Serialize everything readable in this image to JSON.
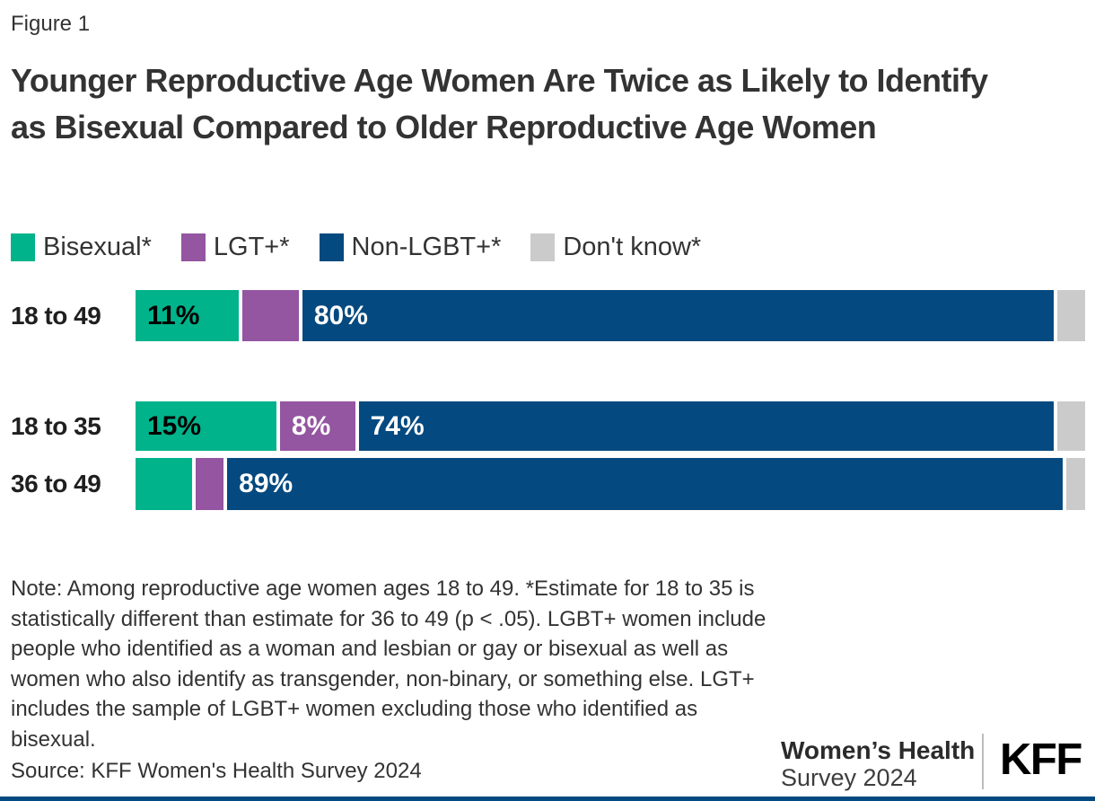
{
  "figure_label": "Figure 1",
  "title": "Younger Reproductive Age Women Are Twice as Likely to Identify as Bisexual Compared to Older Reproductive Age Women",
  "colors": {
    "bisexual_teal": "#00b38b",
    "lgt_purple": "#9455a1",
    "non_lgbt_navy": "#04497f",
    "dont_know_gray": "#cbcbcb",
    "bottom_accent_bar": "#04497f",
    "footer_divider": "#bdbdbd",
    "text": "#333333"
  },
  "chart_data": {
    "type": "bar",
    "orientation": "horizontal",
    "stacked": true,
    "unit": "percent",
    "xlim": [
      0,
      100
    ],
    "grid": false,
    "legend_position": "top",
    "categories": [
      "18 to 49",
      "18 to 35",
      "36 to 49"
    ],
    "series": [
      {
        "name": "Bisexual*",
        "color": "#00b38b",
        "label_color": "#000000",
        "values": [
          11,
          15,
          6
        ],
        "labels": [
          "11%",
          "15%",
          ""
        ]
      },
      {
        "name": "LGT+*",
        "color": "#9455a1",
        "label_color": "#ffffff",
        "values": [
          6,
          8,
          3
        ],
        "labels": [
          "",
          "8%",
          ""
        ]
      },
      {
        "name": "Non-LGBT+*",
        "color": "#04497f",
        "label_color": "#ffffff",
        "values": [
          80,
          74,
          89
        ],
        "labels": [
          "80%",
          "74%",
          "89%"
        ]
      },
      {
        "name": "Don't know*",
        "color": "#cbcbcb",
        "label_color": "#000000",
        "values": [
          3,
          3,
          2
        ],
        "labels": [
          "",
          "",
          ""
        ]
      }
    ]
  },
  "note": "Note: Among reproductive age women ages 18 to 49. *Estimate for 18 to 35 is statistically different than estimate for 36 to 49 (p < .05). LGBT+ women include people who identified as a woman and lesbian or gay or bisexual as well as women who also identify as transgender, non-binary, or something else. LGT+ includes the sample of LGBT+ women excluding those who identified as bisexual.",
  "source": "Source: KFF Women's Health Survey 2024",
  "footer": {
    "program_title": "Women’s Health",
    "program_sub": "Survey 2024",
    "logo": "KFF"
  }
}
